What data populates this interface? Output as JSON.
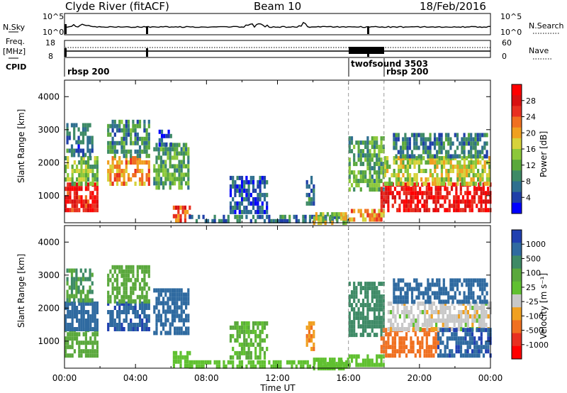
{
  "header": {
    "station": "Clyde River (fitACF)",
    "beam": "Beam 10",
    "date": "18/Feb/2016"
  },
  "summary_panels": {
    "nsky": {
      "left_label": "N.Sky",
      "right_label": "N.Search",
      "left_ticks": [
        "10^5",
        "10^0"
      ],
      "right_ticks": [
        "10^5",
        "10^0"
      ]
    },
    "freq": {
      "left_label_1": "Freq.",
      "left_label_2": "[MHz]",
      "right_label": "Nave",
      "left_ticks": [
        "18",
        "8"
      ],
      "right_ticks": [
        "60",
        "0"
      ]
    },
    "cpid": {
      "label": "CPID",
      "segments": [
        {
          "name": "rbsp 200",
          "start": 0.0
        },
        {
          "name": "twofsound 3503",
          "start": 16.0
        },
        {
          "name": "rbsp 200",
          "start": 18.0
        }
      ]
    }
  },
  "chart_data": [
    {
      "type": "heatmap",
      "name": "power",
      "ylabel": "Slant Range [km]",
      "xlabel": "Time UT",
      "xlim": [
        0,
        24
      ],
      "ylim": [
        180,
        4500
      ],
      "yticks": [
        "1000",
        "2000",
        "3000",
        "4000"
      ],
      "xticks": [
        "00:00",
        "04:00",
        "08:00",
        "12:00",
        "16:00",
        "20:00",
        "00:00"
      ],
      "colorbar": {
        "label": "Power [dB]",
        "ticks": [
          "28",
          "24",
          "20",
          "16",
          "12",
          "8",
          "4"
        ],
        "colors": [
          "#0000ff",
          "#1f3fa8",
          "#2f6f8f",
          "#3e8a66",
          "#5aa83c",
          "#8cc83a",
          "#d6d23a",
          "#f0a020",
          "#f07020",
          "#e83020",
          "#d81010",
          "#ff0000"
        ]
      },
      "cpid_boundaries": [
        16.0,
        18.0
      ],
      "echo_regions": [
        {
          "t0": 0.0,
          "t1": 1.8,
          "r0": 600,
          "r1": 1400,
          "v": 26
        },
        {
          "t0": 0.0,
          "t1": 1.8,
          "r0": 1400,
          "r1": 2200,
          "v": 14
        },
        {
          "t0": 0.1,
          "t1": 1.6,
          "r0": 2200,
          "r1": 3200,
          "v": 8
        },
        {
          "t0": 2.4,
          "t1": 4.8,
          "r0": 1300,
          "r1": 2200,
          "v": 20
        },
        {
          "t0": 2.4,
          "t1": 4.8,
          "r0": 2200,
          "r1": 3300,
          "v": 10
        },
        {
          "t0": 5.0,
          "t1": 7.0,
          "r0": 1200,
          "r1": 2600,
          "v": 12
        },
        {
          "t0": 5.3,
          "t1": 6.0,
          "r0": 2600,
          "r1": 3000,
          "v": 6
        },
        {
          "t0": 6.1,
          "t1": 7.1,
          "r0": 300,
          "r1": 700,
          "v": 22
        },
        {
          "t0": 7.0,
          "t1": 16.0,
          "r0": 190,
          "r1": 420,
          "v": 8
        },
        {
          "t0": 9.3,
          "t1": 11.4,
          "r0": 500,
          "r1": 1600,
          "v": 6
        },
        {
          "t0": 13.6,
          "t1": 14.0,
          "r0": 700,
          "r1": 1600,
          "v": 8
        },
        {
          "t0": 14.0,
          "t1": 16.0,
          "r0": 200,
          "r1": 500,
          "v": 16
        },
        {
          "t0": 16.0,
          "t1": 18.0,
          "r0": 300,
          "r1": 600,
          "v": 20
        },
        {
          "t0": 16.0,
          "t1": 18.0,
          "r0": 1200,
          "r1": 2800,
          "v": 12
        },
        {
          "t0": 17.8,
          "t1": 24.0,
          "r0": 500,
          "r1": 1400,
          "v": 27
        },
        {
          "t0": 18.0,
          "t1": 24.0,
          "r0": 1400,
          "r1": 2200,
          "v": 16
        },
        {
          "t0": 18.5,
          "t1": 23.8,
          "r0": 2200,
          "r1": 2900,
          "v": 9
        }
      ]
    },
    {
      "type": "heatmap",
      "name": "velocity",
      "ylabel": "Slant Range [km]",
      "xlabel": "Time UT",
      "xlim": [
        0,
        24
      ],
      "ylim": [
        180,
        4500
      ],
      "yticks": [
        "1000",
        "2000",
        "3000",
        "4000"
      ],
      "xticks": [
        "00:00",
        "04:00",
        "08:00",
        "12:00",
        "16:00",
        "20:00",
        "00:00"
      ],
      "colorbar": {
        "label": "Velocity [m s⁻¹]",
        "ticks": [
          "1000",
          "500",
          "100",
          "25",
          "-25",
          "-100",
          "-500",
          "-1000"
        ],
        "colors": [
          "#2040b0",
          "#2f6aa0",
          "#3e8a66",
          "#5aa83c",
          "#60c030",
          "#c8c8c8",
          "#f0a020",
          "#f07020",
          "#e83020",
          "#ff0000"
        ]
      },
      "cpid_boundaries": [
        16.0,
        18.0
      ],
      "echo_regions": [
        {
          "t0": 0.0,
          "t1": 1.8,
          "r0": 600,
          "r1": 1400,
          "v": 200
        },
        {
          "t0": 0.0,
          "t1": 1.8,
          "r0": 1400,
          "r1": 2200,
          "v": 700
        },
        {
          "t0": 0.1,
          "t1": 1.6,
          "r0": 2200,
          "r1": 3200,
          "v": 300
        },
        {
          "t0": 2.4,
          "t1": 4.8,
          "r0": 1300,
          "r1": 2200,
          "v": 900
        },
        {
          "t0": 2.4,
          "t1": 4.8,
          "r0": 2200,
          "r1": 3300,
          "v": 150
        },
        {
          "t0": 5.0,
          "t1": 7.0,
          "r0": 1200,
          "r1": 2600,
          "v": 800
        },
        {
          "t0": 6.1,
          "t1": 7.1,
          "r0": 300,
          "r1": 700,
          "v": 60
        },
        {
          "t0": 7.0,
          "t1": 16.0,
          "r0": 190,
          "r1": 420,
          "v": 60
        },
        {
          "t0": 9.3,
          "t1": 11.4,
          "r0": 500,
          "r1": 1600,
          "v": 100
        },
        {
          "t0": 13.6,
          "t1": 14.0,
          "r0": 700,
          "r1": 1600,
          "v": -100
        },
        {
          "t0": 14.0,
          "t1": 16.0,
          "r0": 200,
          "r1": 500,
          "v": 60
        },
        {
          "t0": 16.0,
          "t1": 18.0,
          "r0": 300,
          "r1": 600,
          "v": 60
        },
        {
          "t0": 16.0,
          "t1": 18.0,
          "r0": 1200,
          "r1": 2800,
          "v": 400
        },
        {
          "t0": 17.8,
          "t1": 21.0,
          "r0": 500,
          "r1": 1400,
          "v": -150
        },
        {
          "t0": 18.2,
          "t1": 24.0,
          "r0": 1400,
          "r1": 2200,
          "v": 0
        },
        {
          "t0": 21.0,
          "t1": 24.0,
          "r0": 500,
          "r1": 1400,
          "v": 900
        },
        {
          "t0": 18.5,
          "t1": 23.8,
          "r0": 2200,
          "r1": 2900,
          "v": 700
        }
      ]
    }
  ]
}
